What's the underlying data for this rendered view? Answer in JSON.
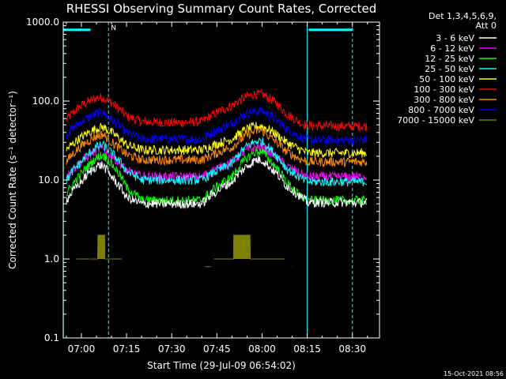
{
  "chart_data": {
    "type": "line",
    "title": "RHESSI Observing Summary Count Rates, Corrected",
    "xlabel": "Start Time (29-Jul-09 06:54:02)",
    "ylabel": "Corrected Count Rate (s⁻¹ detector⁻¹)",
    "log_y": true,
    "ylim": [
      0.1,
      1000
    ],
    "xlim_minutes": [
      -6.03,
      99.0
    ],
    "y_tick_labels": [
      "0.1",
      "1.0",
      "10.0",
      "100.0",
      "1000.0"
    ],
    "x_ticks": [
      {
        "label": "07:00",
        "minutes": 0
      },
      {
        "label": "07:15",
        "minutes": 15
      },
      {
        "label": "07:30",
        "minutes": 30
      },
      {
        "label": "07:45",
        "minutes": 45
      },
      {
        "label": "08:00",
        "minutes": 60
      },
      {
        "label": "08:15",
        "minutes": 75
      },
      {
        "label": "08:30",
        "minutes": 90
      }
    ],
    "legend_header": [
      "Det 1,3,4,5,6,9,",
      "Att 0"
    ],
    "legend_placement": "right",
    "footer": "15-Oct-2021 08:56",
    "series": [
      {
        "name": "3 - 6 keV",
        "color": "#ffffff",
        "x": [
          -5,
          0,
          5,
          7,
          10,
          15,
          20,
          30,
          40,
          50,
          55,
          58,
          60,
          63,
          68,
          72,
          75,
          85,
          95
        ],
        "y": [
          5.5,
          9.5,
          15,
          15.5,
          11,
          6,
          5,
          5,
          5,
          9.5,
          15,
          18,
          18,
          14,
          8.5,
          6.5,
          5.2,
          5.2,
          5.2
        ]
      },
      {
        "name": "6 - 12 keV",
        "color": "#ff00ff",
        "x": [
          -5,
          0,
          5,
          7,
          10,
          15,
          20,
          30,
          40,
          50,
          55,
          58,
          60,
          63,
          68,
          72,
          75,
          85,
          95
        ],
        "y": [
          11,
          17,
          24,
          25,
          20,
          13,
          11,
          11,
          11,
          17,
          24,
          26,
          26,
          22,
          15,
          12.5,
          11,
          11,
          11
        ]
      },
      {
        "name": "12 - 25 keV",
        "color": "#00ff00",
        "x": [
          -5,
          0,
          5,
          7,
          10,
          15,
          20,
          30,
          40,
          50,
          55,
          58,
          60,
          63,
          68,
          72,
          75,
          85,
          95
        ],
        "y": [
          6.5,
          12,
          19,
          21,
          16,
          8,
          5.5,
          5.5,
          5.5,
          11,
          19,
          23,
          23,
          17,
          9.5,
          6.5,
          5.5,
          5.5,
          5.5
        ]
      },
      {
        "name": "25 - 50 keV",
        "color": "#00ffff",
        "x": [
          -5,
          0,
          5,
          7,
          10,
          15,
          20,
          30,
          40,
          50,
          55,
          58,
          60,
          63,
          68,
          72,
          75,
          85,
          95
        ],
        "y": [
          10,
          17,
          26,
          28,
          22,
          13,
          10,
          10,
          10,
          16,
          27,
          31,
          31,
          24,
          14,
          11,
          9.5,
          9.5,
          9.5
        ]
      },
      {
        "name": "50 - 100 keV",
        "color": "#ffff00",
        "x": [
          -5,
          0,
          5,
          7,
          10,
          15,
          20,
          30,
          40,
          50,
          55,
          58,
          60,
          63,
          68,
          72,
          75,
          85,
          95
        ],
        "y": [
          24,
          35,
          45,
          47,
          40,
          28,
          24,
          24,
          24,
          33,
          44,
          48,
          48,
          42,
          30,
          25,
          22,
          22,
          22
        ]
      },
      {
        "name": "100 - 300 keV",
        "color": "#ff0000",
        "x": [
          -5,
          0,
          5,
          7,
          10,
          15,
          20,
          30,
          40,
          50,
          55,
          58,
          60,
          63,
          68,
          72,
          75,
          85,
          95
        ],
        "y": [
          58,
          88,
          110,
          112,
          95,
          64,
          55,
          53,
          55,
          88,
          115,
          122,
          122,
          105,
          70,
          55,
          49,
          48,
          48
        ]
      },
      {
        "name": "300 - 800 keV",
        "color": "#ff8800",
        "x": [
          -5,
          0,
          5,
          7,
          10,
          15,
          20,
          30,
          40,
          50,
          55,
          58,
          60,
          63,
          68,
          72,
          75,
          85,
          95
        ],
        "y": [
          17,
          27,
          36,
          38,
          30,
          21,
          18,
          18,
          18,
          26,
          37,
          42,
          42,
          34,
          23,
          19,
          17,
          17,
          17
        ]
      },
      {
        "name": "800 - 7000 keV",
        "color": "#0000ff",
        "x": [
          -5,
          0,
          5,
          7,
          10,
          15,
          20,
          30,
          40,
          50,
          55,
          58,
          60,
          63,
          68,
          72,
          75,
          85,
          95
        ],
        "y": [
          37,
          55,
          70,
          72,
          58,
          40,
          33,
          33,
          33,
          52,
          70,
          75,
          75,
          65,
          45,
          36,
          32,
          32,
          32
        ]
      },
      {
        "name": "7000 - 15000 keV",
        "color": "#808000",
        "segments": [
          {
            "x": [
              -1.7,
              2.7
            ],
            "y": [
              1.0,
              1.0
            ]
          },
          {
            "x": [
              2.9,
              5.4,
              5.5,
              7.7,
              7.8,
              9.9
            ],
            "y": [
              1.0,
              1.0,
              2.0,
              2.0,
              1.0,
              1.0
            ]
          },
          {
            "x": [
              10.0,
              13.5
            ],
            "y": [
              1.0,
              1.0
            ]
          },
          {
            "x": [
              41.0,
              43.0
            ],
            "y": [
              0.8,
              0.8
            ]
          },
          {
            "x": [
              44.0,
              50.5,
              50.6,
              56.0,
              56.1,
              62.5,
              62.6,
              67.5
            ],
            "y": [
              1.0,
              1.0,
              2.0,
              2.0,
              1.0,
              1.0,
              1.0,
              1.0
            ]
          },
          {
            "x": [
              70.0,
              70.2
            ],
            "y": [
              0.8,
              0.8
            ]
          }
        ]
      }
    ],
    "annotations": {
      "night_intervals": [
        [
          -6.03,
          9.0
        ],
        [
          75.0,
          99.0
        ]
      ],
      "bars": [
        {
          "x": [
            -6.0,
            3.0
          ],
          "y": 800
        },
        {
          "x": [
            75.5,
            90.0
          ],
          "y": 800
        }
      ],
      "flag_label": {
        "text": "N",
        "x": 9.8,
        "y": 850
      },
      "dashed_lines_minutes": [
        9.0,
        90.0
      ],
      "solid_lines_minutes": [
        -6.0,
        75.0
      ]
    }
  }
}
